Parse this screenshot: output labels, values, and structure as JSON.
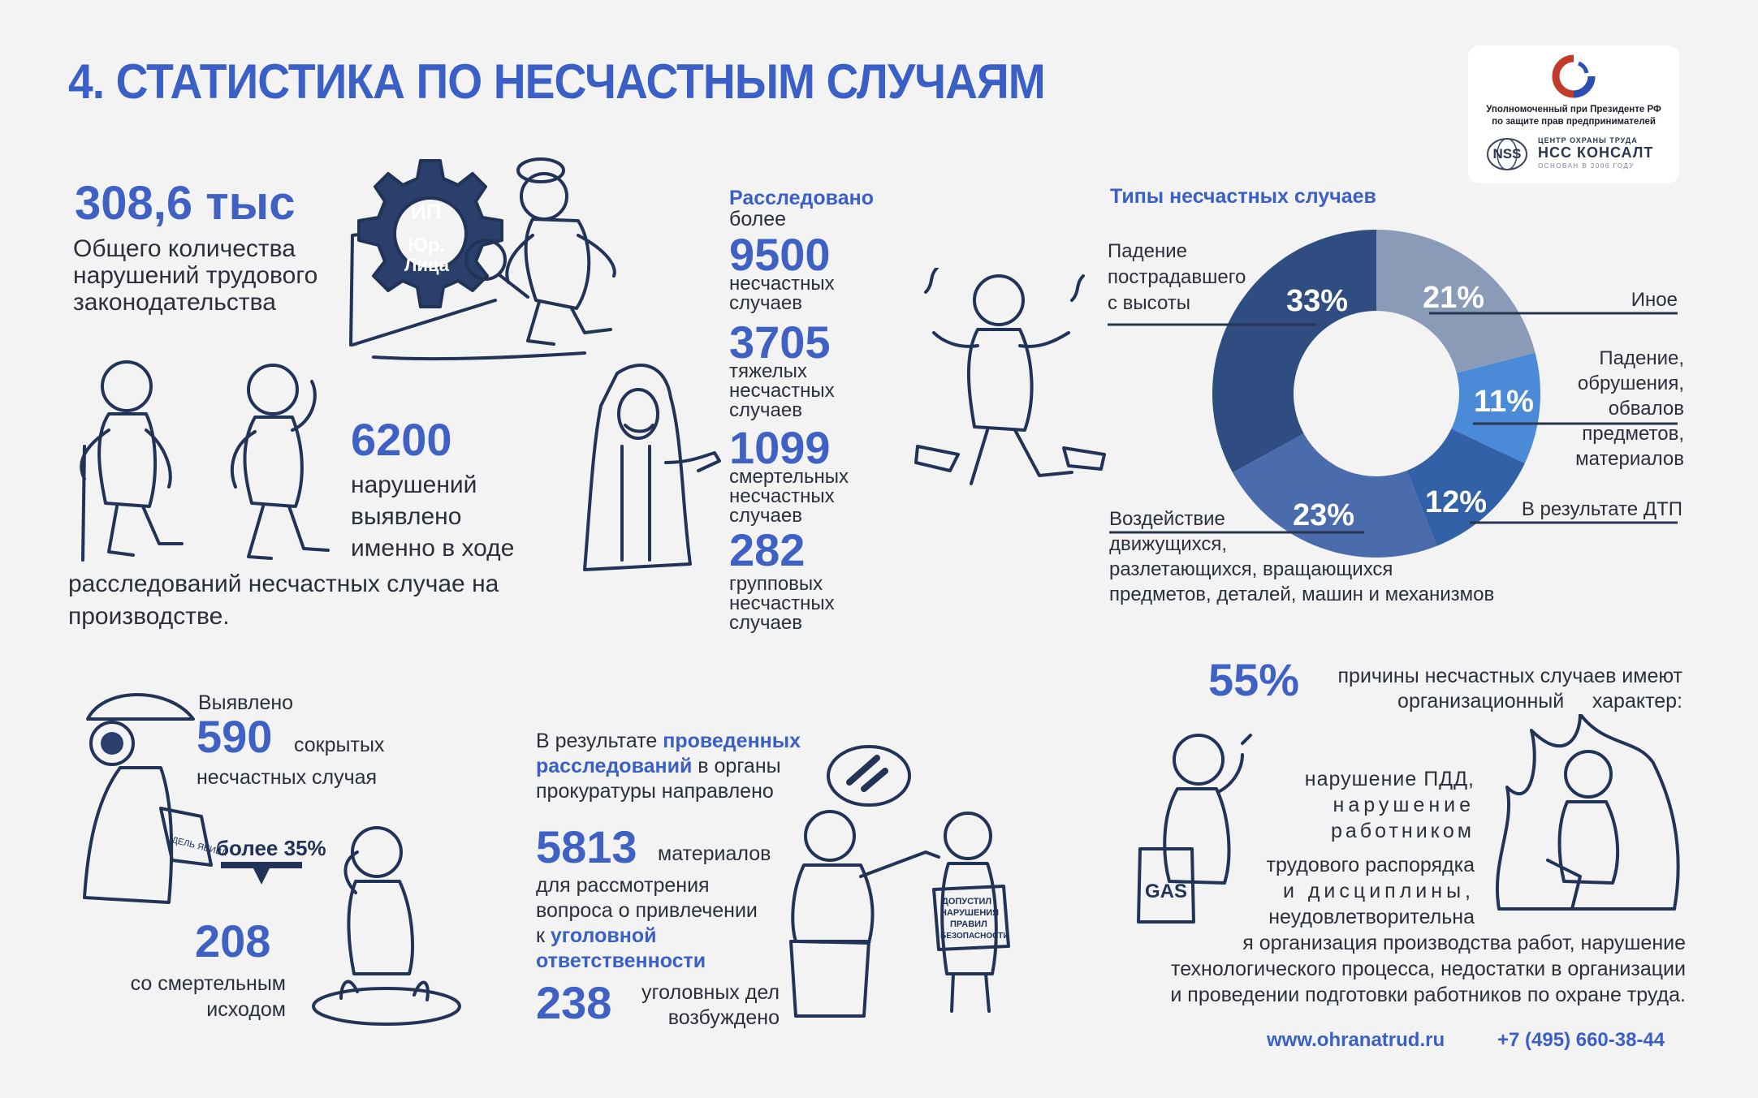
{
  "title": "4. СТАТИСТИКА ПО НЕСЧАСТНЫМ СЛУЧАЯМ",
  "logo": {
    "line1": "Уполномоченный при Президенте РФ",
    "line2": "по защите прав предпринимателей",
    "nss_mark": "NSS",
    "nss_sub": "ЦЕНТР ОХРАНЫ ТРУДА",
    "nss_name": "НСС КОНСАЛТ",
    "nss_since": "ОСНОВАН В 2006 ГОДУ"
  },
  "violations": {
    "value": "308,6 тыс",
    "line1": "Общего количества",
    "line2": "нарушений трудового",
    "line3": "законодательства",
    "gear_ip": "ИП",
    "gear_ur": "Юр.",
    "gear_lica": "Лица"
  },
  "investigations_6200": {
    "value": "6200",
    "line1": "нарушений",
    "line2": "выявлено",
    "line3": "именно в ходе",
    "line4": "расследований несчастных случае на",
    "line5": "производстве."
  },
  "investigated": {
    "heading": "Расследовано",
    "sub": "более",
    "items": [
      {
        "value": "9500",
        "l1": "несчастных",
        "l2": "случаев"
      },
      {
        "value": "3705",
        "l1": "тяжелых",
        "l2": "несчастных",
        "l3": "случаев"
      },
      {
        "value": "1099",
        "l1": "смертельных",
        "l2": "несчастных",
        "l3": "случаев"
      },
      {
        "value": "282",
        "l1": "групповых",
        "l2": "несчастных",
        "l3": "случаев"
      }
    ]
  },
  "chart_data": {
    "type": "pie",
    "title": "Типы несчастных случаев",
    "donut": true,
    "categories": [
      "Иное",
      "Падение, обрушения, обвалов предметов, материалов",
      "В результате ДТП",
      "Воздействие движущихся, разлетающихся, вращающихся предметов, деталей, машин и механизмов",
      "Падение пострадавшего с высоты"
    ],
    "values": [
      21,
      11,
      12,
      23,
      33
    ],
    "labels": [
      "21%",
      "11%",
      "12%",
      "23%",
      "33%"
    ],
    "colors": [
      "#8a9bb8",
      "#4a8ad6",
      "#3361a8",
      "#4a6cad",
      "#2f4d80"
    ]
  },
  "pie_labels": {
    "fall_l1": "Падение",
    "fall_l2": "пострадавшего",
    "fall_l3": "с высоты",
    "other": "Иное",
    "objects_l1": "Падение,",
    "objects_l2": "обрушения,",
    "objects_l3": "обвалов",
    "objects_l4": "предметов,",
    "objects_l5": "материалов",
    "dtp": "В результате ДТП",
    "impact_l1": "Воздействие",
    "impact_l2": "движущихся,",
    "impact_l3": "разлетающихся, вращающихся",
    "impact_l4": "предметов, деталей, машин и механизмов"
  },
  "hidden": {
    "label": "Выявлено",
    "value": "590",
    "word": "сокрытых",
    "line2": "несчастных случая",
    "arrow_label": "более 35%",
    "deaths_value": "208",
    "deaths_l1": "со смертельным",
    "deaths_l2": "исходом",
    "folder_text": "ДЕЛЬ ЯЕИВЛ"
  },
  "prosecution": {
    "intro1_a": "В результате ",
    "intro1_b": "проведенных",
    "intro2_a": "расследований",
    "intro2_b": " в органы",
    "intro3": "прокуратуры направлено",
    "value": "5813",
    "word": "материалов",
    "l1": "для рассмотрения",
    "l2": "вопроса о привлечении",
    "l3_a": "к ",
    "l3_b": "уголовной",
    "l4": "ответственности",
    "cases_value": "238",
    "cases_l1": "уголовных дел",
    "cases_l2": "возбуждено",
    "sign_l1": "ДОПУСТИЛ",
    "sign_l2": "НАРУШЕНИЯ",
    "sign_l3": "ПРАВИЛ",
    "sign_l4": "БЕЗОПАСНОСТИ"
  },
  "causes": {
    "value": "55%",
    "l1": "причины несчастных случаев имеют",
    "l2": "организационный     характер:",
    "b1": "нарушение ПДД,",
    "b2": "нарушение",
    "b3": "работником",
    "b4": "трудового распорядка",
    "b5": "и дисциплины,",
    "b6": "неудовлетворительна",
    "b7": "я организация производства работ, нарушение",
    "b8": "технологического процесса, недостатки в организации",
    "b9": "и проведении подготовки работников по охране труда.",
    "gas": "GAS"
  },
  "footer": {
    "site": "www.ohranatrud.ru",
    "phone": "+7 (495) 660-38-44"
  }
}
